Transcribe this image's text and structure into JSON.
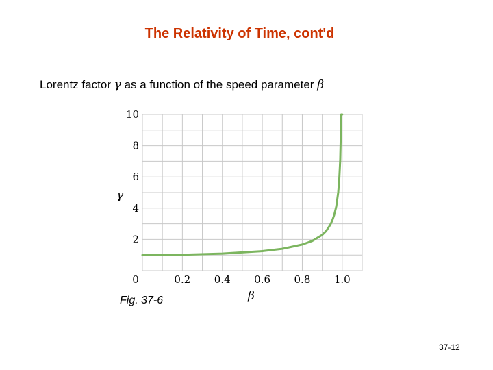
{
  "slide": {
    "title": "The Relativity of Time, cont'd",
    "subtitle_prefix": "Lorentz factor ",
    "subtitle_gamma": "γ",
    "subtitle_mid": " as a function of the speed parameter ",
    "subtitle_beta": "β",
    "caption": "Fig. 37-6",
    "page_number": "37-12"
  },
  "chart_data": {
    "type": "line",
    "title": "",
    "xlabel": "β",
    "ylabel": "γ",
    "xlim": [
      0,
      1.1
    ],
    "ylim": [
      0,
      10
    ],
    "x_ticks": [
      "0",
      "0.2",
      "0.4",
      "0.6",
      "0.8",
      "1.0"
    ],
    "x_tick_values": [
      0,
      0.2,
      0.4,
      0.6,
      0.8,
      1.0
    ],
    "y_ticks": [
      "2",
      "4",
      "6",
      "8",
      "10"
    ],
    "y_tick_values": [
      2,
      4,
      6,
      8,
      10
    ],
    "grid": true,
    "series": [
      {
        "color": "#7cb55f",
        "x": [
          0,
          0.2,
          0.4,
          0.6,
          0.7,
          0.8,
          0.85,
          0.9,
          0.92,
          0.94,
          0.95,
          0.96,
          0.97,
          0.98,
          0.985,
          0.99,
          0.995,
          1.0
        ],
        "y": [
          1.0,
          1.02,
          1.09,
          1.25,
          1.4,
          1.67,
          1.9,
          2.29,
          2.55,
          2.93,
          3.2,
          3.57,
          4.11,
          5.03,
          5.79,
          7.09,
          10.0,
          10.0
        ]
      }
    ]
  }
}
